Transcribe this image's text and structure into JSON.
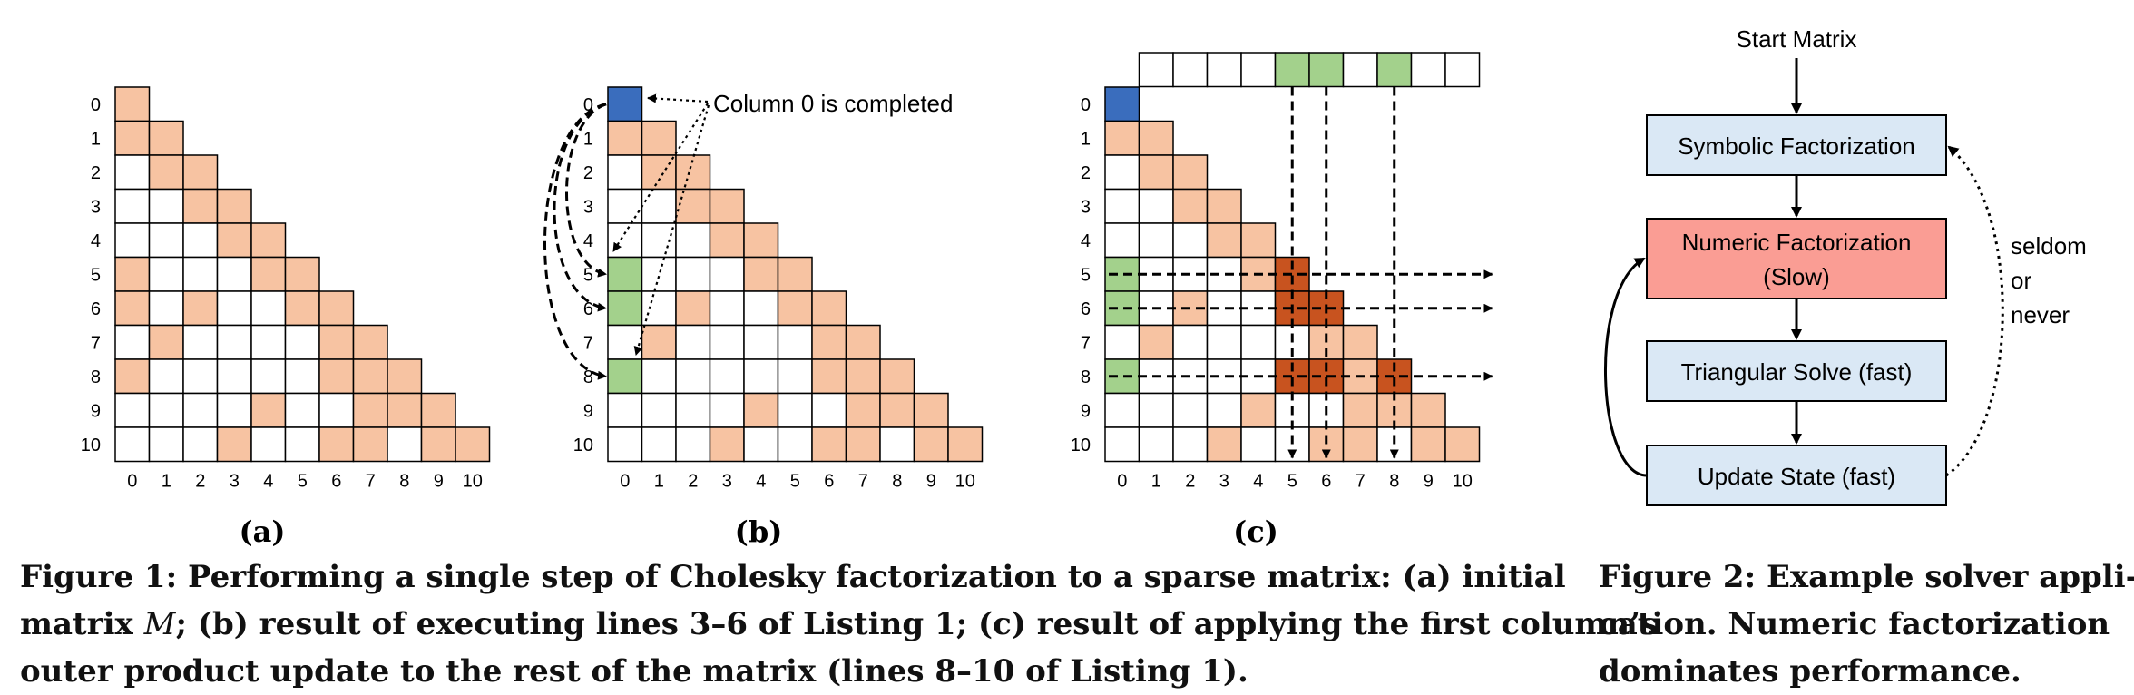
{
  "figure1": {
    "colors": {
      "nonzero": "#f7c3a2",
      "completed_diag": "#3a6dbd",
      "column_nz": "#a3d18c",
      "updated": "#c8531f",
      "grid": "#000000"
    },
    "size": 11,
    "nonzeros": [
      [
        1,
        0
      ],
      [
        2,
        1
      ],
      [
        3,
        2
      ],
      [
        4,
        3
      ],
      [
        5,
        0
      ],
      [
        5,
        4
      ],
      [
        6,
        0
      ],
      [
        6,
        2
      ],
      [
        6,
        5
      ],
      [
        7,
        1
      ],
      [
        7,
        6
      ],
      [
        8,
        0
      ],
      [
        8,
        6
      ],
      [
        8,
        7
      ],
      [
        9,
        4
      ],
      [
        9,
        7
      ],
      [
        9,
        8
      ],
      [
        10,
        3
      ],
      [
        10,
        6
      ],
      [
        10,
        7
      ],
      [
        10,
        9
      ]
    ],
    "row_labels": [
      "0",
      "1",
      "2",
      "3",
      "4",
      "5",
      "6",
      "7",
      "8",
      "9",
      "10"
    ],
    "col_labels": [
      "0",
      "1",
      "2",
      "3",
      "4",
      "5",
      "6",
      "7",
      "8",
      "9",
      "10"
    ],
    "panels": [
      {
        "id": "a",
        "label": "(a)"
      },
      {
        "id": "b",
        "label": "(b)",
        "annotation": "Column 0 is completed",
        "column_nonzeros": [
          5,
          6,
          8
        ]
      },
      {
        "id": "c",
        "label": "(c)",
        "column_nonzeros": [
          5,
          6,
          8
        ],
        "updated": [
          [
            5,
            5
          ],
          [
            6,
            5
          ],
          [
            6,
            6
          ],
          [
            8,
            5
          ],
          [
            8,
            6
          ],
          [
            8,
            8
          ]
        ]
      }
    ],
    "caption_lines": [
      "Figure 1: Performing a single step of Cholesky factorization to a sparse matrix: (a) initial",
      "matrix ",
      "; (b) result of executing lines 3–6 of Listing 1; (c) result of applying the first column’s",
      "outer product update to the rest of the matrix (lines 8–10 of Listing 1)."
    ],
    "caption_matrix_symbol": "M"
  },
  "figure2": {
    "start_label": "Start Matrix",
    "boxes": [
      {
        "id": "symbolic",
        "label": "Symbolic Factorization",
        "fill": "#dae8f5"
      },
      {
        "id": "numeric",
        "label_line1": "Numeric Factorization",
        "label_line2": "(Slow)",
        "fill": "#fa9d94"
      },
      {
        "id": "triangular",
        "label": "Triangular Solve (fast)",
        "fill": "#dae8f5"
      },
      {
        "id": "update",
        "label": "Update State (fast)",
        "fill": "#dae8f5"
      }
    ],
    "side_label": [
      "seldom",
      "or",
      "never"
    ],
    "caption_lines": [
      "Figure 2: Example solver appli-",
      "cation. Numeric factorization",
      "dominates performance."
    ]
  }
}
